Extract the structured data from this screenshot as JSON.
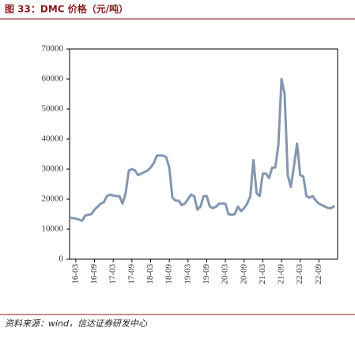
{
  "chart_data": {
    "type": "line",
    "title": "图 33：DMC 价格（元/吨）",
    "source": "资料来源：wind，信达证券研发中心",
    "categories": [
      null,
      null,
      "16-03",
      null,
      null,
      null,
      null,
      null,
      "16-09",
      null,
      null,
      null,
      null,
      null,
      "17-03",
      null,
      null,
      null,
      null,
      null,
      "17-09",
      null,
      null,
      null,
      null,
      null,
      "18-03",
      null,
      null,
      null,
      null,
      null,
      "18-09",
      null,
      null,
      null,
      null,
      null,
      "19-03",
      null,
      null,
      null,
      null,
      null,
      "19-09",
      null,
      null,
      null,
      null,
      null,
      "20-03",
      null,
      null,
      null,
      null,
      null,
      "20-09",
      null,
      null,
      null,
      null,
      null,
      "21-03",
      null,
      null,
      null,
      null,
      null,
      "21-09",
      null,
      null,
      null,
      null,
      null,
      "22-03",
      null,
      null,
      null,
      null,
      null,
      "22-09",
      null,
      null,
      null,
      null,
      null
    ],
    "series": [
      {
        "name": "DMC",
        "color": "#8496b0",
        "values": [
          13800,
          13700,
          13500,
          13200,
          12800,
          14500,
          14800,
          15000,
          16500,
          17500,
          18500,
          19000,
          21000,
          21500,
          21200,
          21000,
          21000,
          18500,
          22000,
          29500,
          30000,
          29500,
          28000,
          28500,
          29000,
          29500,
          30500,
          32000,
          34500,
          34500,
          34500,
          34000,
          30500,
          20500,
          19500,
          19500,
          18000,
          18500,
          20000,
          21500,
          21000,
          16500,
          17500,
          21000,
          21000,
          17500,
          17000,
          17500,
          18500,
          18500,
          18500,
          15000,
          14800,
          15000,
          17500,
          16000,
          17000,
          18500,
          21000,
          33000,
          22000,
          21000,
          28500,
          28500,
          27000,
          30500,
          30500,
          38000,
          60000,
          55000,
          28000,
          24000,
          31000,
          38500,
          28000,
          27500,
          21000,
          20500,
          21000,
          19500,
          18500,
          18000,
          17500,
          17000,
          17000,
          17800
        ]
      }
    ],
    "ylim": [
      0,
      70000
    ],
    "yticks": [
      0,
      10000,
      20000,
      30000,
      40000,
      50000,
      60000,
      70000
    ],
    "grid": false
  }
}
